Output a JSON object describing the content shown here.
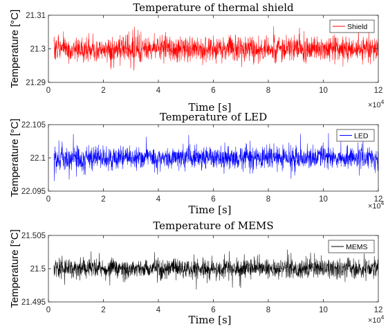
{
  "chart_data": [
    {
      "type": "line",
      "title": "Temperature of thermal shield",
      "xlabel": "Time [s]",
      "ylabel": "Temperature [°C]",
      "x_exponent_label": "×10",
      "x_exponent_power": "4",
      "xlim": [
        0,
        12
      ],
      "ylim": [
        21.29,
        21.31
      ],
      "xticks": [
        0,
        2,
        4,
        6,
        8,
        10,
        12
      ],
      "xtick_labels": [
        "0",
        "2",
        "4",
        "6",
        "8",
        "10",
        "12"
      ],
      "yticks": [
        21.29,
        21.3,
        21.31
      ],
      "ytick_labels": [
        "21.29",
        "21.3",
        "21.31"
      ],
      "legend_placement": "top-right",
      "series": [
        {
          "name": "Shield",
          "color": "#ff0000",
          "x_range": [
            0.2,
            12.0
          ],
          "mean": 21.3,
          "typical_band": [
            21.296,
            21.304
          ],
          "extremes": [
            21.2925,
            21.3085
          ]
        }
      ]
    },
    {
      "type": "line",
      "title": "Temperature of LED",
      "xlabel": "Time [s]",
      "ylabel": "Temperature [°C]",
      "x_exponent_label": "×10",
      "x_exponent_power": "4",
      "xlim": [
        0,
        12
      ],
      "ylim": [
        22.095,
        22.105
      ],
      "xticks": [
        0,
        2,
        4,
        6,
        8,
        10,
        12
      ],
      "xtick_labels": [
        "0",
        "2",
        "4",
        "6",
        "8",
        "10",
        "12"
      ],
      "yticks": [
        22.095,
        22.1,
        22.105
      ],
      "ytick_labels": [
        "22.095",
        "22.1",
        "22.105"
      ],
      "legend_placement": "top-right",
      "series": [
        {
          "name": "LED",
          "color": "#0000ff",
          "x_range": [
            0.2,
            12.0
          ],
          "mean": 22.1,
          "typical_band": [
            22.0982,
            22.1018
          ],
          "extremes": [
            22.0965,
            22.1038
          ]
        }
      ]
    },
    {
      "type": "line",
      "title": "Temperature of MEMS",
      "xlabel": "Time [s]",
      "ylabel": "Temperature [°C]",
      "x_exponent_label": "×10",
      "x_exponent_power": "4",
      "xlim": [
        0,
        12
      ],
      "ylim": [
        21.495,
        21.505
      ],
      "xticks": [
        0,
        2,
        4,
        6,
        8,
        10,
        12
      ],
      "xtick_labels": [
        "0",
        "2",
        "4",
        "6",
        "8",
        "10",
        "12"
      ],
      "yticks": [
        21.495,
        21.5,
        21.505
      ],
      "ytick_labels": [
        "21.495",
        "21.5",
        "21.505"
      ],
      "legend_placement": "top-right",
      "series": [
        {
          "name": "MEMS",
          "color": "#000000",
          "x_range": [
            0.2,
            12.0
          ],
          "mean": 21.5,
          "typical_band": [
            21.4985,
            21.5015
          ],
          "extremes": [
            21.4968,
            21.503
          ]
        }
      ]
    }
  ]
}
